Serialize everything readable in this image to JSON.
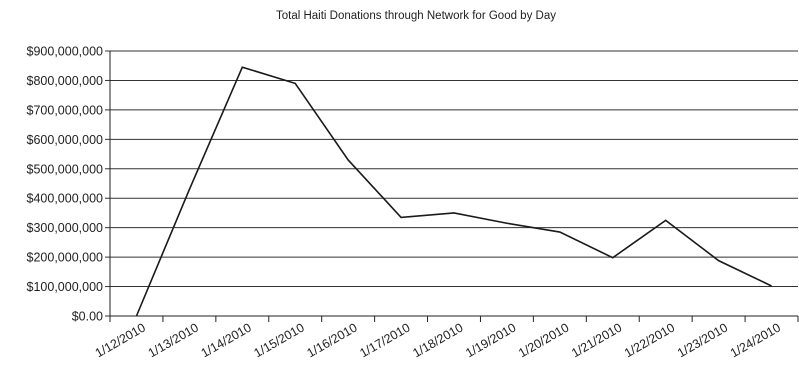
{
  "chart_data": {
    "type": "line",
    "title": "Total Haiti Donations through Network for Good by Day",
    "xlabel": "",
    "ylabel": "",
    "grid": true,
    "legend": "none",
    "ylim": [
      0,
      900000000
    ],
    "yticks": [
      {
        "value": 0,
        "label": "$0.00"
      },
      {
        "value": 100000000,
        "label": "$100,000,000"
      },
      {
        "value": 200000000,
        "label": "$200,000,000"
      },
      {
        "value": 300000000,
        "label": "$300,000,000"
      },
      {
        "value": 400000000,
        "label": "$400,000,000"
      },
      {
        "value": 500000000,
        "label": "$500,000,000"
      },
      {
        "value": 600000000,
        "label": "$600,000,000"
      },
      {
        "value": 700000000,
        "label": "$700,000,000"
      },
      {
        "value": 800000000,
        "label": "$800,000,000"
      },
      {
        "value": 900000000,
        "label": "$900,000,000"
      }
    ],
    "categories": [
      "1/12/2010",
      "1/13/2010",
      "1/14/2010",
      "1/15/2010",
      "1/16/2010",
      "1/17/2010",
      "1/18/2010",
      "1/19/2010",
      "1/20/2010",
      "1/21/2010",
      "1/22/2010",
      "1/23/2010",
      "1/24/2010"
    ],
    "series": [
      {
        "name": "",
        "values": [
          0,
          430000000,
          845000000,
          790000000,
          530000000,
          335000000,
          350000000,
          315000000,
          285000000,
          198000000,
          325000000,
          188000000,
          102000000
        ]
      }
    ],
    "line_color": "#1a1a1a",
    "grid_color": "#333333"
  }
}
